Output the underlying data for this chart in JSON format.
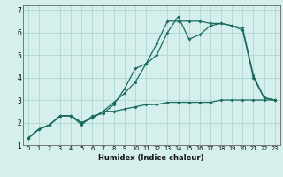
{
  "xlabel": "Humidex (Indice chaleur)",
  "bg_color": "#d4efec",
  "grid_color": "#aed8d4",
  "line_color": "#1a6b5e",
  "xlim": [
    -0.5,
    23.5
  ],
  "ylim": [
    1,
    7.2
  ],
  "yticks": [
    1,
    2,
    3,
    4,
    5,
    6,
    7
  ],
  "xticks": [
    0,
    1,
    2,
    3,
    4,
    5,
    6,
    7,
    8,
    9,
    10,
    11,
    12,
    13,
    14,
    15,
    16,
    17,
    18,
    19,
    20,
    21,
    22,
    23
  ],
  "line1_x": [
    0,
    1,
    2,
    3,
    4,
    5,
    6,
    7,
    8,
    9,
    10,
    11,
    12,
    13,
    14,
    15,
    16,
    17,
    18,
    19,
    20,
    21,
    22,
    23
  ],
  "line1_y": [
    1.3,
    1.7,
    1.9,
    2.3,
    2.3,
    2.0,
    2.2,
    2.5,
    2.9,
    3.3,
    3.8,
    4.6,
    5.0,
    6.0,
    6.7,
    5.7,
    5.9,
    6.3,
    6.4,
    6.3,
    6.2,
    4.1,
    3.1,
    3.0
  ],
  "line2_x": [
    0,
    1,
    2,
    3,
    4,
    5,
    6,
    7,
    8,
    9,
    10,
    11,
    12,
    13,
    14,
    15,
    16,
    17,
    18,
    19,
    20,
    21,
    22,
    23
  ],
  "line2_y": [
    1.3,
    1.7,
    1.9,
    2.3,
    2.3,
    1.9,
    2.3,
    2.4,
    2.8,
    3.5,
    4.4,
    4.6,
    5.5,
    6.5,
    6.5,
    6.5,
    6.5,
    6.4,
    6.4,
    6.3,
    6.1,
    4.0,
    3.1,
    3.0
  ],
  "line3_x": [
    0,
    1,
    2,
    3,
    4,
    5,
    6,
    7,
    8,
    9,
    10,
    11,
    12,
    13,
    14,
    15,
    16,
    17,
    18,
    19,
    20,
    21,
    22,
    23
  ],
  "line3_y": [
    1.3,
    1.7,
    1.9,
    2.3,
    2.3,
    2.0,
    2.2,
    2.5,
    2.5,
    2.6,
    2.7,
    2.8,
    2.8,
    2.9,
    2.9,
    2.9,
    2.9,
    2.9,
    3.0,
    3.0,
    3.0,
    3.0,
    3.0,
    3.0
  ],
  "xlabel_fontsize": 6.0,
  "tick_fontsize": 4.8,
  "ytick_fontsize": 5.5,
  "marker_size": 2.0,
  "linewidth": 0.9
}
